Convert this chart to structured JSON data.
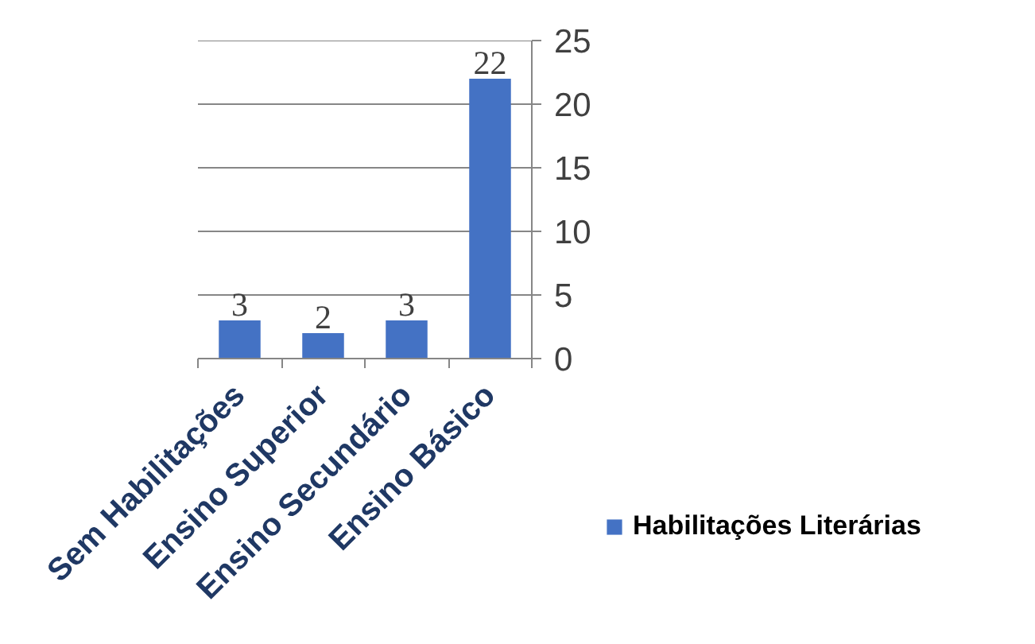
{
  "chart_data": {
    "type": "bar",
    "categories": [
      "Sem Habilitações",
      "Ensino Superior",
      "Ensino Secundário",
      "Ensino Básico"
    ],
    "series": [
      {
        "name": "Habilitações Literárias",
        "color": "#4472c4",
        "values": [
          3,
          2,
          3,
          22
        ]
      }
    ],
    "ylim": [
      0,
      25
    ],
    "yticks": [
      0,
      5,
      10,
      15,
      20,
      25
    ],
    "grid": "y",
    "legend": "right",
    "data_labels": true
  }
}
